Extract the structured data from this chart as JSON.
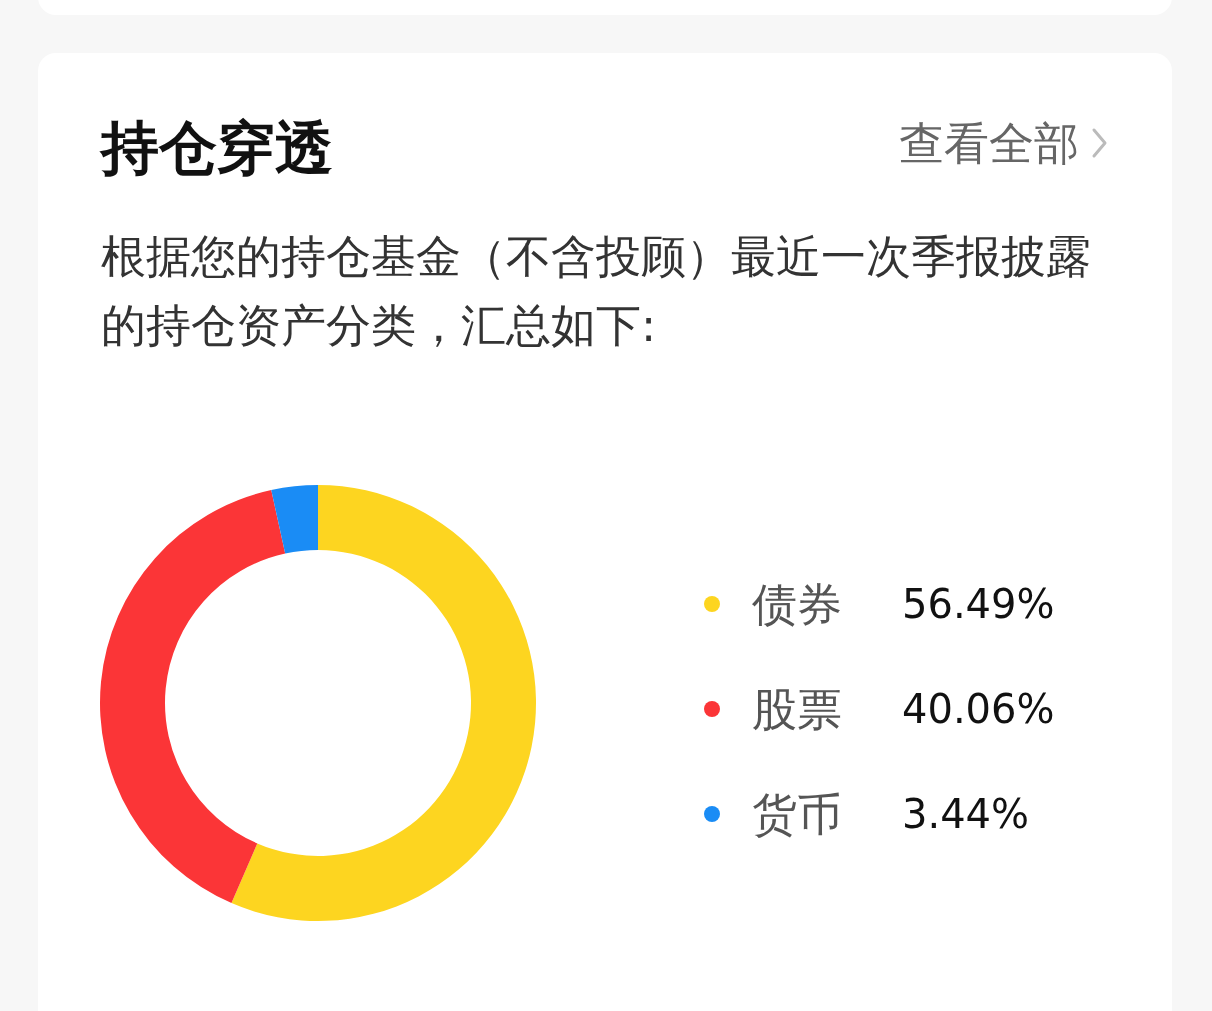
{
  "chart_data": {
    "type": "donut",
    "title": "持仓穿透",
    "subtitle": "根据您的持仓基金（不含投顾）最近一次季报披露的持仓资产分类，汇总如下:",
    "annotations": [
      "查看全部"
    ],
    "categories": [
      "债券",
      "股票",
      "货币"
    ],
    "values": [
      56.49,
      40.06,
      3.44
    ],
    "colors": [
      "#fdd520",
      "#fb3537",
      "#1a8cf5"
    ],
    "value_labels": [
      "56.49%",
      "40.06%",
      "3.44%"
    ],
    "legend": "right"
  }
}
